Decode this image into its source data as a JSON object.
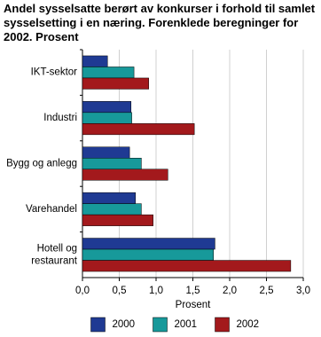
{
  "chart_data": {
    "type": "hbar",
    "title": "Andel sysselsatte berørt av konkurser i forhold til samlet sysselsetting i en næring. Forenklede beregninger for 2002. Prosent",
    "categories": [
      "IKT-sektor",
      "Industri",
      "Bygg og anlegg",
      "Varehandel",
      "Hotell og restaurant"
    ],
    "series": [
      {
        "name": "2000",
        "color": "#1f3a93",
        "values": [
          0.34,
          0.66,
          0.64,
          0.72,
          1.8
        ]
      },
      {
        "name": "2001",
        "color": "#17999a",
        "values": [
          0.7,
          0.67,
          0.8,
          0.8,
          1.78
        ]
      },
      {
        "name": "2002",
        "color": "#a3191c",
        "values": [
          0.9,
          1.52,
          1.16,
          0.96,
          2.83
        ]
      }
    ],
    "xlabel": "Prosent",
    "xlim": [
      0,
      3
    ],
    "xticks": [
      {
        "value": 0,
        "label": "0,0"
      },
      {
        "value": 0.5,
        "label": "0,5"
      },
      {
        "value": 1,
        "label": "1,0"
      },
      {
        "value": 1.5,
        "label": "1,5"
      },
      {
        "value": 2,
        "label": "2,0"
      },
      {
        "value": 2.5,
        "label": "2,5"
      },
      {
        "value": 3,
        "label": "3,0"
      }
    ],
    "grid": true
  }
}
